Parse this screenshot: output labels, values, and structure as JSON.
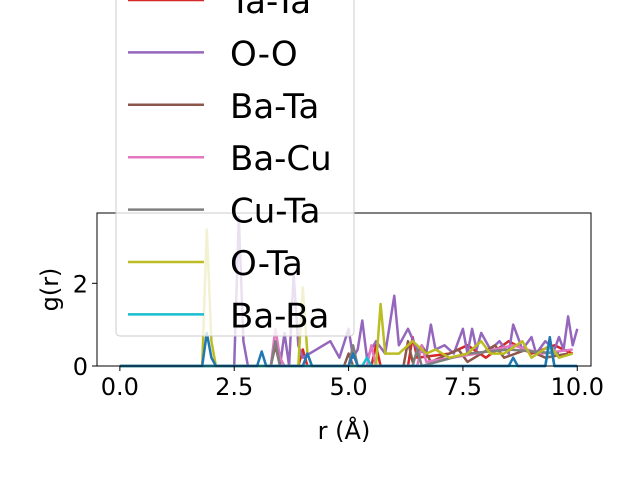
{
  "chart_data": {
    "type": "line",
    "xlabel": "r (Å)",
    "ylabel": "g(r)",
    "xlim": [
      -0.5,
      10.3
    ],
    "ylim": [
      0,
      3.7
    ],
    "x_ticks": [
      0.0,
      2.5,
      5.0,
      7.5,
      10.0
    ],
    "x_tick_labels": [
      "0.0",
      "2.5",
      "5.0",
      "7.5",
      "10.0"
    ],
    "y_ticks": [
      0,
      2
    ],
    "y_tick_labels": [
      "0",
      "2"
    ],
    "grid": false,
    "legend_position": "upper-left, extending above plot",
    "series": [
      {
        "name": "Ta-Ta",
        "color": "#d62728",
        "points": [
          [
            0.0,
            0
          ],
          [
            3.9,
            0
          ],
          [
            4.0,
            0.4
          ],
          [
            4.1,
            0
          ],
          [
            5.5,
            0
          ],
          [
            5.6,
            0.5
          ],
          [
            5.7,
            0
          ],
          [
            6.3,
            0
          ],
          [
            6.4,
            0.7
          ],
          [
            6.5,
            0.2
          ],
          [
            7.2,
            0.3
          ],
          [
            7.6,
            0.5
          ],
          [
            8.0,
            0.2
          ],
          [
            8.5,
            0.6
          ],
          [
            9.0,
            0.3
          ],
          [
            9.5,
            0.5
          ],
          [
            9.9,
            0.3
          ]
        ]
      },
      {
        "name": "O-O",
        "color": "#9467bd",
        "points": [
          [
            0.0,
            0
          ],
          [
            2.5,
            0
          ],
          [
            2.6,
            3.6
          ],
          [
            2.7,
            0.6
          ],
          [
            2.8,
            0
          ],
          [
            3.5,
            0
          ],
          [
            3.6,
            0.8
          ],
          [
            3.7,
            0
          ],
          [
            3.8,
            2.2
          ],
          [
            3.9,
            0.5
          ],
          [
            4.0,
            0.2
          ],
          [
            4.6,
            0.6
          ],
          [
            4.8,
            0.2
          ],
          [
            5.0,
            0.9
          ],
          [
            5.1,
            0.2
          ],
          [
            5.2,
            0.4
          ],
          [
            5.3,
            1.1
          ],
          [
            5.4,
            0.2
          ],
          [
            5.6,
            0.6
          ],
          [
            5.8,
            0.3
          ],
          [
            6.0,
            1.7
          ],
          [
            6.1,
            0.5
          ],
          [
            6.3,
            0.9
          ],
          [
            6.5,
            0.4
          ],
          [
            6.7,
            0.3
          ],
          [
            6.8,
            1.0
          ],
          [
            6.9,
            0.4
          ],
          [
            7.1,
            0.5
          ],
          [
            7.3,
            0.3
          ],
          [
            7.5,
            0.9
          ],
          [
            7.6,
            0.3
          ],
          [
            7.7,
            0.9
          ],
          [
            7.8,
            0.4
          ],
          [
            7.9,
            0.8
          ],
          [
            8.1,
            0.4
          ],
          [
            8.3,
            0.6
          ],
          [
            8.5,
            0.3
          ],
          [
            8.6,
            1.0
          ],
          [
            8.8,
            0.4
          ],
          [
            9.0,
            0.7
          ],
          [
            9.1,
            0.3
          ],
          [
            9.3,
            0.6
          ],
          [
            9.5,
            0.4
          ],
          [
            9.6,
            0.7
          ],
          [
            9.7,
            0.4
          ],
          [
            9.8,
            1.2
          ],
          [
            9.9,
            0.5
          ],
          [
            10.0,
            0.9
          ]
        ]
      },
      {
        "name": "Ba-Ta",
        "color": "#8c564b",
        "points": [
          [
            0.0,
            0
          ],
          [
            3.3,
            0
          ],
          [
            3.4,
            0.5
          ],
          [
            3.5,
            0
          ],
          [
            4.9,
            0
          ],
          [
            5.0,
            0.3
          ],
          [
            5.1,
            0
          ],
          [
            6.2,
            0
          ],
          [
            6.3,
            0.6
          ],
          [
            6.4,
            0.1
          ],
          [
            6.6,
            0.5
          ],
          [
            6.8,
            0.1
          ],
          [
            7.4,
            0.4
          ],
          [
            7.6,
            0.1
          ],
          [
            8.2,
            0.5
          ],
          [
            8.4,
            0.2
          ],
          [
            8.9,
            0.4
          ],
          [
            9.3,
            0.2
          ],
          [
            9.8,
            0.3
          ]
        ]
      },
      {
        "name": "Ba-Cu",
        "color": "#e377c2",
        "points": [
          [
            0.0,
            0
          ],
          [
            3.3,
            0
          ],
          [
            3.4,
            0.9
          ],
          [
            3.5,
            0.2
          ],
          [
            3.6,
            0
          ],
          [
            5.4,
            0
          ],
          [
            5.5,
            0.5
          ],
          [
            5.6,
            0
          ],
          [
            6.5,
            0
          ],
          [
            6.6,
            0.5
          ],
          [
            6.7,
            0.1
          ],
          [
            7.8,
            0.3
          ],
          [
            8.6,
            0.5
          ],
          [
            9.2,
            0.3
          ],
          [
            9.9,
            0.4
          ]
        ]
      },
      {
        "name": "Cu-Ta",
        "color": "#7f7f7f",
        "points": [
          [
            0.0,
            0
          ],
          [
            3.3,
            0
          ],
          [
            3.4,
            0.6
          ],
          [
            3.5,
            0
          ],
          [
            5.0,
            0
          ],
          [
            5.1,
            0.5
          ],
          [
            5.2,
            0
          ],
          [
            6.4,
            0
          ],
          [
            6.5,
            0.4
          ],
          [
            6.6,
            0
          ],
          [
            7.6,
            0.3
          ],
          [
            8.5,
            0.4
          ],
          [
            9.6,
            0.3
          ]
        ]
      },
      {
        "name": "O-Ta",
        "color": "#bcbd22",
        "points": [
          [
            0.0,
            0
          ],
          [
            1.8,
            0
          ],
          [
            1.9,
            3.3
          ],
          [
            2.0,
            0.6
          ],
          [
            2.1,
            0
          ],
          [
            3.9,
            0
          ],
          [
            4.0,
            1.9
          ],
          [
            4.1,
            0.3
          ],
          [
            4.2,
            0
          ],
          [
            5.6,
            0
          ],
          [
            5.7,
            1.5
          ],
          [
            5.8,
            0.3
          ],
          [
            6.1,
            0.3
          ],
          [
            6.4,
            0.6
          ],
          [
            6.7,
            0.3
          ],
          [
            6.9,
            0.4
          ],
          [
            7.2,
            0.2
          ],
          [
            7.6,
            0.3
          ],
          [
            7.9,
            0.6
          ],
          [
            8.1,
            0.3
          ],
          [
            8.4,
            0.3
          ],
          [
            8.8,
            0.6
          ],
          [
            9.0,
            0.2
          ],
          [
            9.4,
            0.5
          ],
          [
            9.6,
            0.2
          ],
          [
            9.9,
            0.3
          ]
        ]
      },
      {
        "name": "Ba-Ba",
        "color": "#17becf",
        "points": [
          [
            0.0,
            0
          ],
          [
            5.3,
            0
          ],
          [
            5.4,
            0.2
          ],
          [
            5.5,
            0
          ],
          [
            9.3,
            0
          ],
          [
            9.4,
            0.6
          ],
          [
            9.5,
            0
          ],
          [
            10.0,
            0
          ]
        ]
      },
      {
        "name": "",
        "color": "#1f77b4",
        "points": [
          [
            0.0,
            0
          ],
          [
            1.8,
            0
          ],
          [
            1.9,
            0.8
          ],
          [
            2.0,
            0.2
          ],
          [
            2.1,
            0
          ],
          [
            3.0,
            0
          ],
          [
            3.1,
            0.35
          ],
          [
            3.2,
            0
          ],
          [
            4.0,
            0
          ],
          [
            4.1,
            0.3
          ],
          [
            4.2,
            0
          ],
          [
            5.0,
            0
          ],
          [
            5.1,
            0.3
          ],
          [
            5.2,
            0
          ],
          [
            8.5,
            0
          ],
          [
            8.6,
            0.2
          ],
          [
            8.7,
            0
          ],
          [
            9.3,
            0
          ],
          [
            9.4,
            0.7
          ],
          [
            9.5,
            0
          ],
          [
            10.0,
            0
          ]
        ]
      }
    ],
    "legend_entries": [
      {
        "label": "Ta-Ta",
        "color": "#d62728"
      },
      {
        "label": "O-O",
        "color": "#9467bd"
      },
      {
        "label": "Ba-Ta",
        "color": "#8c564b"
      },
      {
        "label": "Ba-Cu",
        "color": "#e377c2"
      },
      {
        "label": "Cu-Ta",
        "color": "#7f7f7f"
      },
      {
        "label": "O-Ta",
        "color": "#bcbd22"
      },
      {
        "label": "Ba-Ba",
        "color": "#17becf"
      }
    ]
  }
}
